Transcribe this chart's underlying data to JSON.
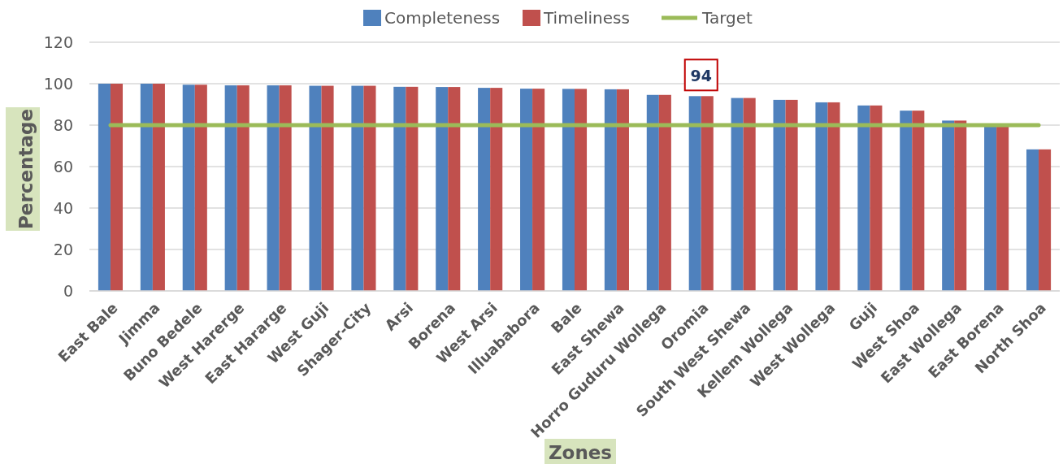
{
  "chart_data": {
    "type": "bar",
    "xlabel": "Zones",
    "ylabel": "Percentage",
    "categories": [
      "East Bale",
      "Jimma",
      "Buno Bedele",
      "West Harerge",
      "East Hararge",
      "West Guji",
      "Shager-City",
      "Arsi",
      "Borena",
      "West Arsi",
      "Illuababora",
      "Bale",
      "East Shewa",
      "Horro Guduru Wollega",
      "Oromia",
      "South West Shewa",
      "Kellem Wollega",
      "West Wollega",
      "Guji",
      "West Shoa",
      "East Wollega",
      "East Borena",
      "North Shoa"
    ],
    "series": [
      {
        "name": "Completeness",
        "color": "#4f81bd",
        "values": [
          100,
          100,
          99.5,
          99.2,
          99.2,
          99,
          99,
          98.5,
          98.4,
          98,
          97.6,
          97.5,
          97.3,
          94.6,
          94,
          93.1,
          92.2,
          91,
          89.5,
          87,
          82.2,
          80,
          68.3
        ]
      },
      {
        "name": "Timeliness",
        "color": "#c0504d",
        "values": [
          100,
          100,
          99.5,
          99.2,
          99.2,
          99,
          99,
          98.5,
          98.4,
          98,
          97.6,
          97.5,
          97.3,
          94.6,
          94,
          93.1,
          92.2,
          91,
          89.5,
          87,
          82.2,
          80,
          68.3
        ]
      },
      {
        "name": "Target",
        "type": "line",
        "color": "#9bbb59",
        "values": [
          80,
          80,
          80,
          80,
          80,
          80,
          80,
          80,
          80,
          80,
          80,
          80,
          80,
          80,
          80,
          80,
          80,
          80,
          80,
          80,
          80,
          80,
          80
        ]
      }
    ],
    "ylim": [
      0,
      120
    ],
    "yticks": [
      0,
      20,
      40,
      60,
      80,
      100,
      120
    ],
    "grid": "y",
    "legend": "top",
    "annotations": [
      {
        "text": "94",
        "x": "Oromia",
        "y": 94
      }
    ]
  }
}
